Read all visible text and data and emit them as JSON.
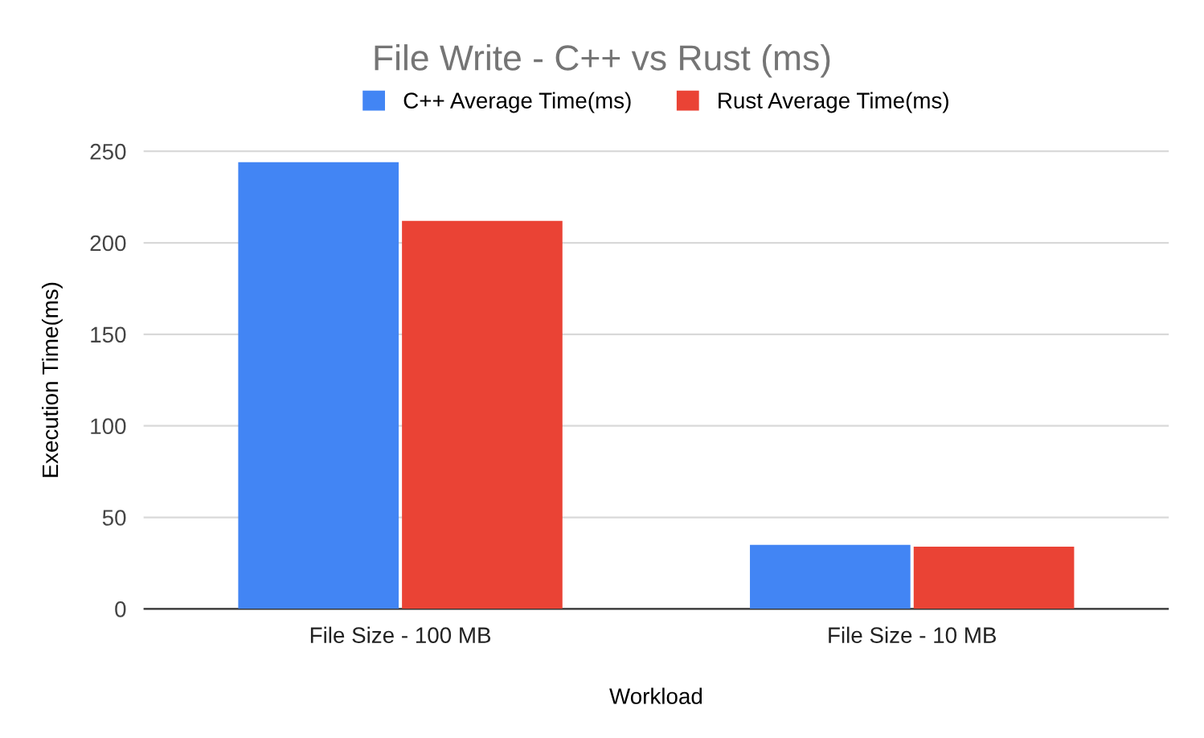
{
  "chart_data": {
    "type": "bar",
    "title": "File Write - C++ vs Rust (ms)",
    "xlabel": "Workload",
    "ylabel": "Execution Time(ms)",
    "categories": [
      "File Size - 100 MB",
      "File Size - 10 MB"
    ],
    "series": [
      {
        "name": "C++ Average Time(ms)",
        "color": "#4285f4",
        "values": [
          244,
          35
        ]
      },
      {
        "name": "Rust Average Time(ms)",
        "color": "#ea4335",
        "values": [
          212,
          34
        ]
      }
    ],
    "ylim": [
      0,
      250
    ],
    "yticks": [
      0,
      50,
      100,
      150,
      200,
      250
    ],
    "grid": "y",
    "legend": "top"
  }
}
